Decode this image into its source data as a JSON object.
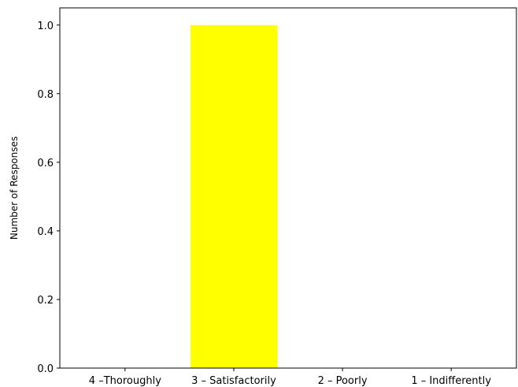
{
  "chart_data": {
    "type": "bar",
    "categories": [
      "4 –Thoroughly",
      "3 – Satisfactorily",
      "2 – Poorly",
      "1 – Indifferently"
    ],
    "values": [
      0,
      1.0,
      0,
      0
    ],
    "title": "",
    "xlabel": "",
    "ylabel": "Number of Responses",
    "ylim": [
      0,
      1.05
    ],
    "yticks": [
      "0.0",
      "0.2",
      "0.4",
      "0.6",
      "0.8",
      "1.0"
    ],
    "bar_color": "#ffff00",
    "grid": false,
    "legend": "none"
  }
}
